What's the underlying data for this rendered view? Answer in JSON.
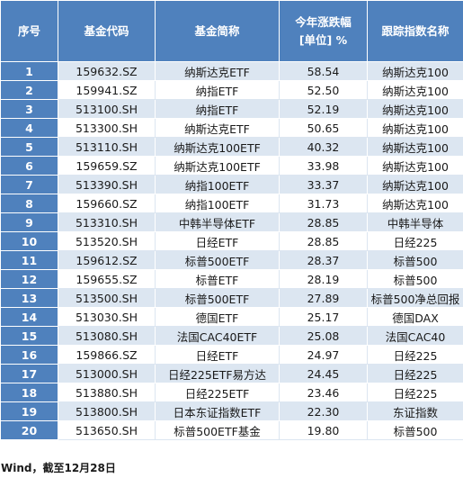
{
  "table": {
    "headers": {
      "idx": "序号",
      "code": "基金代码",
      "name": "基金简称",
      "pct_line1": "今年涨跌幅",
      "pct_line2": "[单位] %",
      "index": "跟踪指数名称"
    },
    "rows": [
      {
        "idx": "1",
        "code": "159632.SZ",
        "name": "纳斯达克ETF",
        "pct": "58.54",
        "index": "纳斯达克100"
      },
      {
        "idx": "2",
        "code": "159941.SZ",
        "name": "纳指ETF",
        "pct": "52.50",
        "index": "纳斯达克100"
      },
      {
        "idx": "3",
        "code": "513100.SH",
        "name": "纳指ETF",
        "pct": "52.19",
        "index": "纳斯达克100"
      },
      {
        "idx": "4",
        "code": "513300.SH",
        "name": "纳斯达克ETF",
        "pct": "50.65",
        "index": "纳斯达克100"
      },
      {
        "idx": "5",
        "code": "513110.SH",
        "name": "纳斯达克100ETF",
        "pct": "40.32",
        "index": "纳斯达克100"
      },
      {
        "idx": "6",
        "code": "159659.SZ",
        "name": "纳斯达克100ETF",
        "pct": "33.98",
        "index": "纳斯达克100"
      },
      {
        "idx": "7",
        "code": "513390.SH",
        "name": "纳指100ETF",
        "pct": "33.37",
        "index": "纳斯达克100"
      },
      {
        "idx": "8",
        "code": "159660.SZ",
        "name": "纳指100ETF",
        "pct": "31.73",
        "index": "纳斯达克100"
      },
      {
        "idx": "9",
        "code": "513310.SH",
        "name": "中韩半导体ETF",
        "pct": "28.85",
        "index": "中韩半导体"
      },
      {
        "idx": "10",
        "code": "513520.SH",
        "name": "日经ETF",
        "pct": "28.85",
        "index": "日经225"
      },
      {
        "idx": "11",
        "code": "159612.SZ",
        "name": "标普500ETF",
        "pct": "28.37",
        "index": "标普500"
      },
      {
        "idx": "12",
        "code": "159655.SZ",
        "name": "标普ETF",
        "pct": "28.19",
        "index": "标普500"
      },
      {
        "idx": "13",
        "code": "513500.SH",
        "name": "标普500ETF",
        "pct": "27.89",
        "index": "标普500净总回报"
      },
      {
        "idx": "14",
        "code": "513030.SH",
        "name": "德国ETF",
        "pct": "25.17",
        "index": "德国DAX"
      },
      {
        "idx": "15",
        "code": "513080.SH",
        "name": "法国CAC40ETF",
        "pct": "25.08",
        "index": "法国CAC40"
      },
      {
        "idx": "16",
        "code": "159866.SZ",
        "name": "日经ETF",
        "pct": "24.97",
        "index": "日经225"
      },
      {
        "idx": "17",
        "code": "513000.SH",
        "name": "日经225ETF易方达",
        "pct": "24.45",
        "index": "日经225"
      },
      {
        "idx": "18",
        "code": "513880.SH",
        "name": "日经225ETF",
        "pct": "23.46",
        "index": "日经225"
      },
      {
        "idx": "19",
        "code": "513800.SH",
        "name": "日本东证指数ETF",
        "pct": "22.30",
        "index": "东证指数"
      },
      {
        "idx": "20",
        "code": "513650.SH",
        "name": "标普500ETF基金",
        "pct": "19.80",
        "index": "标普500"
      }
    ]
  },
  "footer": {
    "source": "Wind，截至12月28日"
  },
  "colors": {
    "header_blue": "#4f81bd",
    "stripe_light": "#dce6f1"
  }
}
